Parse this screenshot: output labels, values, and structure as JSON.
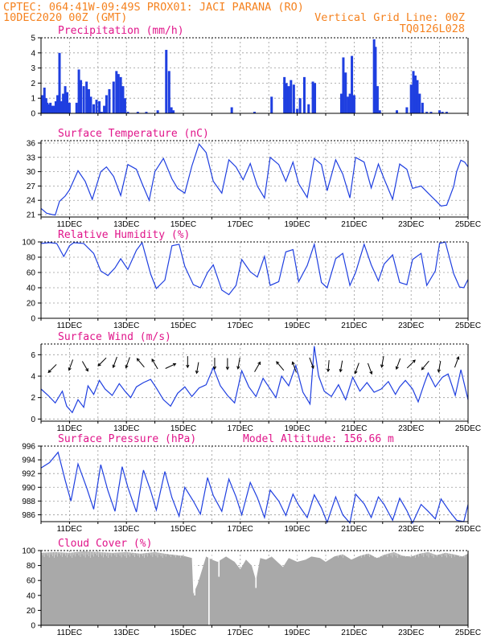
{
  "header": {
    "line1": "CPTEC:   064:41W-09:49S   PROX01: JACI PARANA (RO)",
    "line2_left": "10DEC2020 00Z (GMT)",
    "line2_right": "Vertical Grid Line: 00Z",
    "line3_right": "TQ0126L028"
  },
  "colors": {
    "header": "#f5821f",
    "title": "#e0158a",
    "series": "#1f3fe0",
    "cloud": "#a9a9a9",
    "grid": "#9a9a9a"
  },
  "chart_data": [
    {
      "id": "precip",
      "type": "bar",
      "title": "Precipitation (mm/h)",
      "ylim": [
        0,
        5
      ],
      "yticks": [
        0,
        1,
        2,
        3,
        4,
        5
      ],
      "show_xticks": false,
      "grid": true,
      "xlim": [
        0,
        15
      ],
      "x": [
        0.05,
        0.12,
        0.18,
        0.22,
        0.27,
        0.33,
        0.4,
        0.46,
        0.52,
        0.58,
        0.65,
        0.72,
        0.78,
        0.85,
        0.92,
        1.0,
        1.25,
        1.33,
        1.4,
        1.5,
        1.6,
        1.68,
        1.75,
        1.85,
        1.95,
        2.05,
        2.13,
        2.22,
        2.3,
        2.4,
        2.55,
        2.65,
        2.72,
        2.8,
        2.88,
        2.95,
        3.05,
        3.4,
        3.7,
        4.1,
        4.4,
        4.5,
        4.58,
        4.65,
        6.7,
        7.5,
        8.1,
        8.55,
        8.62,
        8.7,
        8.78,
        8.88,
        9.0,
        9.1,
        9.25,
        9.4,
        9.55,
        9.62,
        10.55,
        10.62,
        10.7,
        10.78,
        10.85,
        10.92,
        11.0,
        11.7,
        11.75,
        11.82,
        11.9,
        12.5,
        12.85,
        13.0,
        13.08,
        13.15,
        13.22,
        13.3,
        13.4,
        13.55,
        13.7,
        14.0,
        14.1,
        14.25
      ],
      "values": [
        1.2,
        1.7,
        1.0,
        0.7,
        0.6,
        0.7,
        0.5,
        0.5,
        0.8,
        1.2,
        4.0,
        0.8,
        1.3,
        1.8,
        1.4,
        0.7,
        0.7,
        2.9,
        2.2,
        1.8,
        2.1,
        1.6,
        1.1,
        0.6,
        0.9,
        0.8,
        0.1,
        0.5,
        1.2,
        1.6,
        2.1,
        2.8,
        2.6,
        2.4,
        1.8,
        1.0,
        0.1,
        0.1,
        0.1,
        0.2,
        4.2,
        2.8,
        0.4,
        0.2,
        0.4,
        0.1,
        1.1,
        2.4,
        2.0,
        1.8,
        2.2,
        1.9,
        0.3,
        1.0,
        2.4,
        0.6,
        2.1,
        2.0,
        1.3,
        3.7,
        2.7,
        1.1,
        1.3,
        3.8,
        1.2,
        4.9,
        4.4,
        1.8,
        0.2,
        0.2,
        0.4,
        1.9,
        2.8,
        2.5,
        2.2,
        1.3,
        0.7,
        0.1,
        0.1,
        0.2,
        0.1,
        0.1
      ]
    },
    {
      "id": "temp",
      "type": "line",
      "title": "Surface Temperature (nC)",
      "ylim": [
        20.5,
        36.5
      ],
      "yticks": [
        21,
        24,
        27,
        30,
        33,
        36
      ],
      "show_xticks": true,
      "grid": true,
      "xlim": [
        0,
        15
      ],
      "x": [
        0,
        0.2,
        0.4,
        0.5,
        0.65,
        0.85,
        1.0,
        1.3,
        1.55,
        1.8,
        2.1,
        2.3,
        2.55,
        2.8,
        3.05,
        3.35,
        3.55,
        3.8,
        4.0,
        4.3,
        4.6,
        4.8,
        5.05,
        5.3,
        5.55,
        5.8,
        6.05,
        6.35,
        6.6,
        6.85,
        7.1,
        7.35,
        7.6,
        7.85,
        8.05,
        8.35,
        8.6,
        8.85,
        9.05,
        9.35,
        9.6,
        9.85,
        10.05,
        10.35,
        10.6,
        10.85,
        11.05,
        11.35,
        11.6,
        11.85,
        12.05,
        12.35,
        12.6,
        12.85,
        13.05,
        13.35,
        13.6,
        13.85,
        14.05,
        14.25,
        14.5,
        14.6,
        14.75,
        14.88,
        15.0
      ],
      "values": [
        22.3,
        21.3,
        21.0,
        20.9,
        23.8,
        24.9,
        26.2,
        30.2,
        28.0,
        24.2,
        30.0,
        31.0,
        29.0,
        25.0,
        31.5,
        30.5,
        27.5,
        24.0,
        30.0,
        32.8,
        28.5,
        26.5,
        25.5,
        31.2,
        35.8,
        34.0,
        28.0,
        25.5,
        32.5,
        31.0,
        28.3,
        31.7,
        27.0,
        24.5,
        33.0,
        31.5,
        28.0,
        32.0,
        27.5,
        24.6,
        32.8,
        31.5,
        26.0,
        32.5,
        29.5,
        24.5,
        33.0,
        32.0,
        26.6,
        31.6,
        28.5,
        24.2,
        31.6,
        30.5,
        26.5,
        27.0,
        25.5,
        24.0,
        22.8,
        23.0,
        27.0,
        30.0,
        32.4,
        32.0,
        31.0
      ]
    },
    {
      "id": "rh",
      "type": "line",
      "title": "Relative Humidity (%)",
      "ylim": [
        0,
        100
      ],
      "yticks": [
        0,
        20,
        40,
        60,
        80,
        100
      ],
      "show_xticks": true,
      "grid": true,
      "xlim": [
        0,
        15
      ],
      "x": [
        0,
        0.3,
        0.55,
        0.8,
        1.0,
        1.15,
        1.5,
        1.85,
        2.1,
        2.35,
        2.6,
        2.8,
        3.05,
        3.35,
        3.55,
        3.85,
        4.05,
        4.35,
        4.6,
        4.85,
        5.05,
        5.35,
        5.6,
        5.85,
        6.05,
        6.35,
        6.6,
        6.85,
        7.05,
        7.35,
        7.6,
        7.85,
        8.05,
        8.35,
        8.6,
        8.85,
        9.05,
        9.35,
        9.6,
        9.85,
        10.05,
        10.35,
        10.6,
        10.85,
        11.05,
        11.35,
        11.6,
        11.85,
        12.05,
        12.35,
        12.6,
        12.85,
        13.05,
        13.35,
        13.55,
        13.85,
        14.0,
        14.2,
        14.5,
        14.7,
        14.85,
        15.0
      ],
      "values": [
        98,
        99,
        98,
        81,
        95,
        99,
        98,
        85,
        62,
        56,
        66,
        78,
        64,
        89,
        99,
        58,
        39,
        50,
        95,
        97,
        68,
        44,
        40,
        60,
        70,
        37,
        31,
        43,
        77,
        61,
        54,
        81,
        43,
        48,
        87,
        90,
        48,
        69,
        97,
        47,
        40,
        78,
        85,
        43,
        60,
        97,
        70,
        49,
        71,
        83,
        47,
        44,
        77,
        85,
        43,
        62,
        98,
        100,
        58,
        41,
        40,
        51
      ]
    },
    {
      "id": "wind",
      "type": "line",
      "title": "Surface Wind (m/s)",
      "ylim": [
        -0.2,
        7.0
      ],
      "yticks": [
        0,
        2,
        4,
        6
      ],
      "show_xticks": true,
      "grid": true,
      "xlim": [
        0,
        15
      ],
      "x": [
        0,
        0.25,
        0.5,
        0.75,
        0.9,
        1.1,
        1.3,
        1.5,
        1.65,
        1.85,
        2.05,
        2.25,
        2.5,
        2.75,
        2.95,
        3.15,
        3.35,
        3.6,
        3.85,
        4.05,
        4.3,
        4.55,
        4.8,
        5.05,
        5.3,
        5.55,
        5.8,
        6.05,
        6.3,
        6.55,
        6.8,
        7.05,
        7.3,
        7.55,
        7.8,
        8.0,
        8.25,
        8.45,
        8.7,
        8.95,
        9.2,
        9.45,
        9.6,
        9.75,
        9.95,
        10.2,
        10.45,
        10.7,
        10.95,
        11.2,
        11.45,
        11.7,
        11.95,
        12.2,
        12.45,
        12.6,
        12.8,
        13.05,
        13.25,
        13.45,
        13.6,
        13.85,
        14.1,
        14.3,
        14.55,
        14.75,
        15.0
      ],
      "values": [
        2.8,
        2.2,
        1.5,
        2.6,
        1.2,
        0.6,
        1.8,
        1.1,
        3.1,
        2.3,
        3.6,
        2.8,
        2.2,
        3.3,
        2.6,
        2.0,
        3.0,
        3.4,
        3.7,
        2.9,
        1.8,
        1.2,
        2.4,
        3.0,
        2.1,
        2.9,
        3.2,
        4.8,
        3.1,
        2.2,
        1.5,
        4.5,
        3.0,
        2.1,
        3.8,
        3.0,
        2.0,
        4.0,
        3.1,
        5.0,
        2.5,
        1.4,
        6.8,
        4.0,
        2.6,
        2.1,
        3.2,
        1.8,
        3.9,
        2.6,
        3.4,
        2.5,
        2.8,
        3.5,
        2.3,
        3.0,
        3.6,
        2.8,
        1.6,
        3.2,
        4.3,
        3.0,
        3.9,
        4.2,
        2.2,
        4.6,
        1.8
      ],
      "arrows": [
        {
          "x": 0.4,
          "dir": 225
        },
        {
          "x": 1.05,
          "dir": 200
        },
        {
          "x": 1.55,
          "dir": 150
        },
        {
          "x": 2.15,
          "dir": 225
        },
        {
          "x": 2.6,
          "dir": 200
        },
        {
          "x": 3.05,
          "dir": 200
        },
        {
          "x": 3.5,
          "dir": 320
        },
        {
          "x": 4.0,
          "dir": 330
        },
        {
          "x": 4.55,
          "dir": 65
        },
        {
          "x": 5.15,
          "dir": 180
        },
        {
          "x": 5.5,
          "dir": 190
        },
        {
          "x": 6.1,
          "dir": 180
        },
        {
          "x": 6.55,
          "dir": 180
        },
        {
          "x": 6.95,
          "dir": 190
        },
        {
          "x": 7.6,
          "dir": 30
        },
        {
          "x": 8.4,
          "dir": 320
        },
        {
          "x": 8.9,
          "dir": 340
        },
        {
          "x": 9.5,
          "dir": 160
        },
        {
          "x": 10.1,
          "dir": 185
        },
        {
          "x": 10.55,
          "dir": 190
        },
        {
          "x": 11.1,
          "dir": 200
        },
        {
          "x": 11.55,
          "dir": 160
        },
        {
          "x": 12.0,
          "dir": 190
        },
        {
          "x": 12.55,
          "dir": 200
        },
        {
          "x": 13.0,
          "dir": 45
        },
        {
          "x": 13.5,
          "dir": 220
        },
        {
          "x": 14.0,
          "dir": 190
        },
        {
          "x": 14.6,
          "dir": 20
        }
      ]
    },
    {
      "id": "pressure",
      "type": "line",
      "title": "Surface Pressure (hPa)",
      "subtitle": "Model Altitude: 156.66 m",
      "ylim": [
        985.0,
        996.0
      ],
      "yticks": [
        986,
        988,
        990,
        992,
        994,
        996
      ],
      "show_xticks": true,
      "grid": true,
      "xlim": [
        0,
        15
      ],
      "x": [
        0,
        0.3,
        0.6,
        0.85,
        1.05,
        1.3,
        1.6,
        1.85,
        2.1,
        2.35,
        2.6,
        2.85,
        3.05,
        3.35,
        3.6,
        3.85,
        4.05,
        4.35,
        4.6,
        4.85,
        5.05,
        5.35,
        5.6,
        5.85,
        6.05,
        6.35,
        6.6,
        6.85,
        7.05,
        7.35,
        7.6,
        7.85,
        8.05,
        8.35,
        8.6,
        8.85,
        9.05,
        9.35,
        9.6,
        9.85,
        10.05,
        10.35,
        10.6,
        10.85,
        11.05,
        11.35,
        11.6,
        11.85,
        12.05,
        12.35,
        12.6,
        12.85,
        13.05,
        13.35,
        13.6,
        13.85,
        14.05,
        14.35,
        14.6,
        14.85,
        15.0
      ],
      "values": [
        992.8,
        993.6,
        995.1,
        991.0,
        988.0,
        993.4,
        990.0,
        986.8,
        993.3,
        989.5,
        986.5,
        993.0,
        990.0,
        986.4,
        992.5,
        989.5,
        986.7,
        992.3,
        988.5,
        985.8,
        990.0,
        988.0,
        986.1,
        991.4,
        988.8,
        986.5,
        991.2,
        988.6,
        986.0,
        990.7,
        988.5,
        985.6,
        989.6,
        988.0,
        985.9,
        989.0,
        987.4,
        985.6,
        988.9,
        987.0,
        984.9,
        988.6,
        986.0,
        984.8,
        989.0,
        987.6,
        985.6,
        988.6,
        987.5,
        985.2,
        988.4,
        986.6,
        984.8,
        987.5,
        986.5,
        985.4,
        988.3,
        986.5,
        985.2,
        985.0,
        987.5
      ]
    },
    {
      "id": "cloud",
      "type": "area",
      "title": "Cloud Cover (%)",
      "ylim": [
        0,
        100
      ],
      "yticks": [
        0,
        20,
        40,
        60,
        80,
        100
      ],
      "show_xticks": true,
      "grid": true,
      "xlim": [
        0,
        15
      ],
      "x": [
        0,
        0.5,
        1.0,
        1.5,
        2.0,
        2.5,
        3.0,
        3.5,
        4.0,
        4.5,
        5.0,
        5.3,
        5.35,
        5.5,
        5.8,
        6.0,
        6.2,
        6.5,
        6.8,
        7.0,
        7.2,
        7.4,
        7.55,
        7.7,
        7.9,
        8.1,
        8.3,
        8.5,
        8.7,
        9.0,
        9.3,
        9.5,
        9.8,
        10.0,
        10.3,
        10.6,
        10.9,
        11.2,
        11.5,
        11.8,
        12.1,
        12.4,
        12.7,
        13.0,
        13.3,
        13.6,
        13.9,
        14.2,
        14.5,
        14.8,
        15.0
      ],
      "values": [
        97,
        98,
        97,
        99,
        98,
        97,
        98,
        96,
        98,
        95,
        93,
        90,
        42,
        55,
        92,
        88,
        85,
        92,
        85,
        75,
        88,
        80,
        60,
        90,
        88,
        92,
        85,
        78,
        90,
        85,
        88,
        92,
        90,
        85,
        92,
        95,
        88,
        93,
        96,
        90,
        95,
        98,
        93,
        92,
        96,
        98,
        94,
        97,
        95,
        92,
        96
      ],
      "dips": [
        {
          "x": 5.9,
          "v": 0
        },
        {
          "x": 6.25,
          "v": 65
        },
        {
          "x": 7.55,
          "v": 50
        },
        {
          "x": 5.4,
          "v": 40
        }
      ]
    }
  ],
  "x_tick_labels": [
    "11DEC",
    "13DEC",
    "15DEC",
    "17DEC",
    "19DEC",
    "21DEC",
    "23DEC",
    "25DEC"
  ]
}
